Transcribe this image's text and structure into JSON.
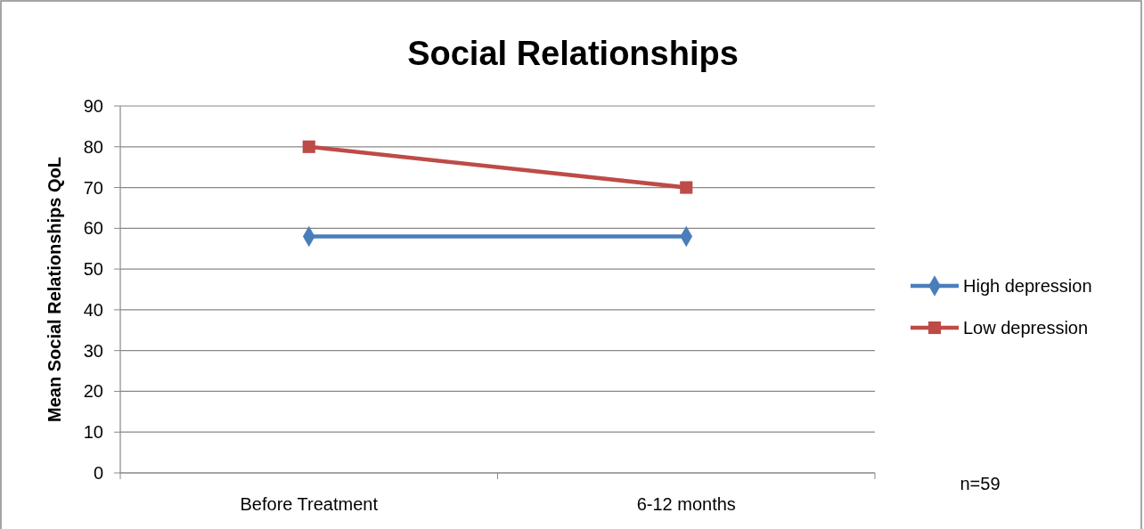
{
  "chart_data": {
    "type": "line",
    "title": "Social Relationships",
    "ylabel": "Mean Social Relationships  QoL",
    "categories": [
      "Before Treatment",
      "6-12 months"
    ],
    "series": [
      {
        "name": "High depression",
        "color": "#4a7ebb",
        "values": [
          58,
          58
        ],
        "marker": "diamond"
      },
      {
        "name": "Low depression",
        "color": "#be4b48",
        "values": [
          80,
          70
        ],
        "marker": "square"
      }
    ],
    "ylim": [
      0,
      90
    ],
    "yticks": [
      0,
      10,
      20,
      30,
      40,
      50,
      60,
      70,
      80,
      90
    ],
    "grid": "y",
    "legend": "right",
    "annotations": [
      "n=59"
    ]
  }
}
